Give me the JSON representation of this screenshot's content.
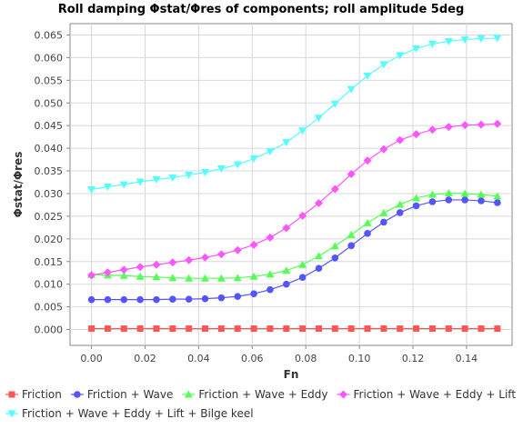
{
  "chart_data": {
    "type": "line",
    "title": "Roll damping Φstat/Φres of components; roll amplitude 5deg",
    "xlabel": "Fn",
    "ylabel": "Φstat/Φres",
    "xlim": [
      -0.008,
      0.157
    ],
    "ylim": [
      -0.0035,
      0.0675
    ],
    "xticks": [
      "0.00",
      "0.02",
      "0.04",
      "0.06",
      "0.08",
      "0.10",
      "0.12",
      "0.14"
    ],
    "xtick_values": [
      0.0,
      0.02,
      0.04,
      0.06,
      0.08,
      0.1,
      0.12,
      0.14
    ],
    "yticks": [
      "0.000",
      "0.005",
      "0.010",
      "0.015",
      "0.020",
      "0.025",
      "0.030",
      "0.035",
      "0.040",
      "0.045",
      "0.050",
      "0.055",
      "0.060",
      "0.065"
    ],
    "ytick_values": [
      0.0,
      0.005,
      0.01,
      0.015,
      0.02,
      0.025,
      0.03,
      0.035,
      0.04,
      0.045,
      0.05,
      0.055,
      0.06,
      0.065
    ],
    "grid": true,
    "legend_position": "bottom",
    "x": [
      0.0,
      0.00606,
      0.01212,
      0.01818,
      0.02424,
      0.0303,
      0.03636,
      0.04242,
      0.04848,
      0.05455,
      0.06061,
      0.06667,
      0.07273,
      0.07879,
      0.08485,
      0.09091,
      0.09697,
      0.10303,
      0.10909,
      0.11515,
      0.12121,
      0.12727,
      0.13333,
      0.13939,
      0.14545,
      0.15152
    ],
    "series": [
      {
        "name": "Friction",
        "color": "#ff5555",
        "marker": "square",
        "values": [
          0.0002,
          0.0002,
          0.0002,
          0.0002,
          0.0002,
          0.0002,
          0.0002,
          0.0002,
          0.0002,
          0.0002,
          0.0002,
          0.0002,
          0.0002,
          0.0002,
          0.0002,
          0.0002,
          0.0002,
          0.0002,
          0.0002,
          0.0002,
          0.0002,
          0.0002,
          0.0002,
          0.0002,
          0.0002,
          0.0002
        ]
      },
      {
        "name": "Friction + Wave",
        "color": "#5555ff",
        "marker": "circle",
        "values": [
          0.0066,
          0.0066,
          0.0066,
          0.0066,
          0.0066,
          0.0067,
          0.0067,
          0.0068,
          0.007,
          0.0073,
          0.0079,
          0.0088,
          0.01,
          0.0115,
          0.0135,
          0.0158,
          0.0185,
          0.0212,
          0.0237,
          0.0258,
          0.0273,
          0.0282,
          0.0286,
          0.0286,
          0.0284,
          0.028
        ]
      },
      {
        "name": "Friction + Wave + Eddy",
        "color": "#55ff55",
        "marker": "triangle",
        "values": [
          0.0121,
          0.012,
          0.0119,
          0.0117,
          0.0116,
          0.0114,
          0.0113,
          0.0113,
          0.0113,
          0.0114,
          0.0117,
          0.0122,
          0.013,
          0.0143,
          0.0162,
          0.0184,
          0.0209,
          0.0235,
          0.0257,
          0.0276,
          0.029,
          0.0298,
          0.0301,
          0.03,
          0.0298,
          0.0294
        ]
      },
      {
        "name": "Friction + Wave + Eddy + Lift",
        "color": "#ff55ff",
        "marker": "diamond",
        "values": [
          0.012,
          0.0126,
          0.0132,
          0.0138,
          0.0143,
          0.0148,
          0.0153,
          0.0159,
          0.0166,
          0.0175,
          0.0187,
          0.0203,
          0.0224,
          0.0251,
          0.0279,
          0.031,
          0.0343,
          0.0373,
          0.0398,
          0.0418,
          0.0431,
          0.0441,
          0.0447,
          0.0451,
          0.0452,
          0.0454
        ]
      },
      {
        "name": "Friction + Wave + Eddy + Lift + Bilge keel",
        "color": "#55ffff",
        "marker": "triangle-down",
        "values": [
          0.0309,
          0.0315,
          0.032,
          0.0326,
          0.0331,
          0.0335,
          0.0341,
          0.0347,
          0.0355,
          0.0364,
          0.0377,
          0.0393,
          0.0413,
          0.0439,
          0.0467,
          0.0498,
          0.053,
          0.056,
          0.0585,
          0.0605,
          0.062,
          0.063,
          0.0636,
          0.064,
          0.0642,
          0.0643
        ]
      }
    ]
  }
}
